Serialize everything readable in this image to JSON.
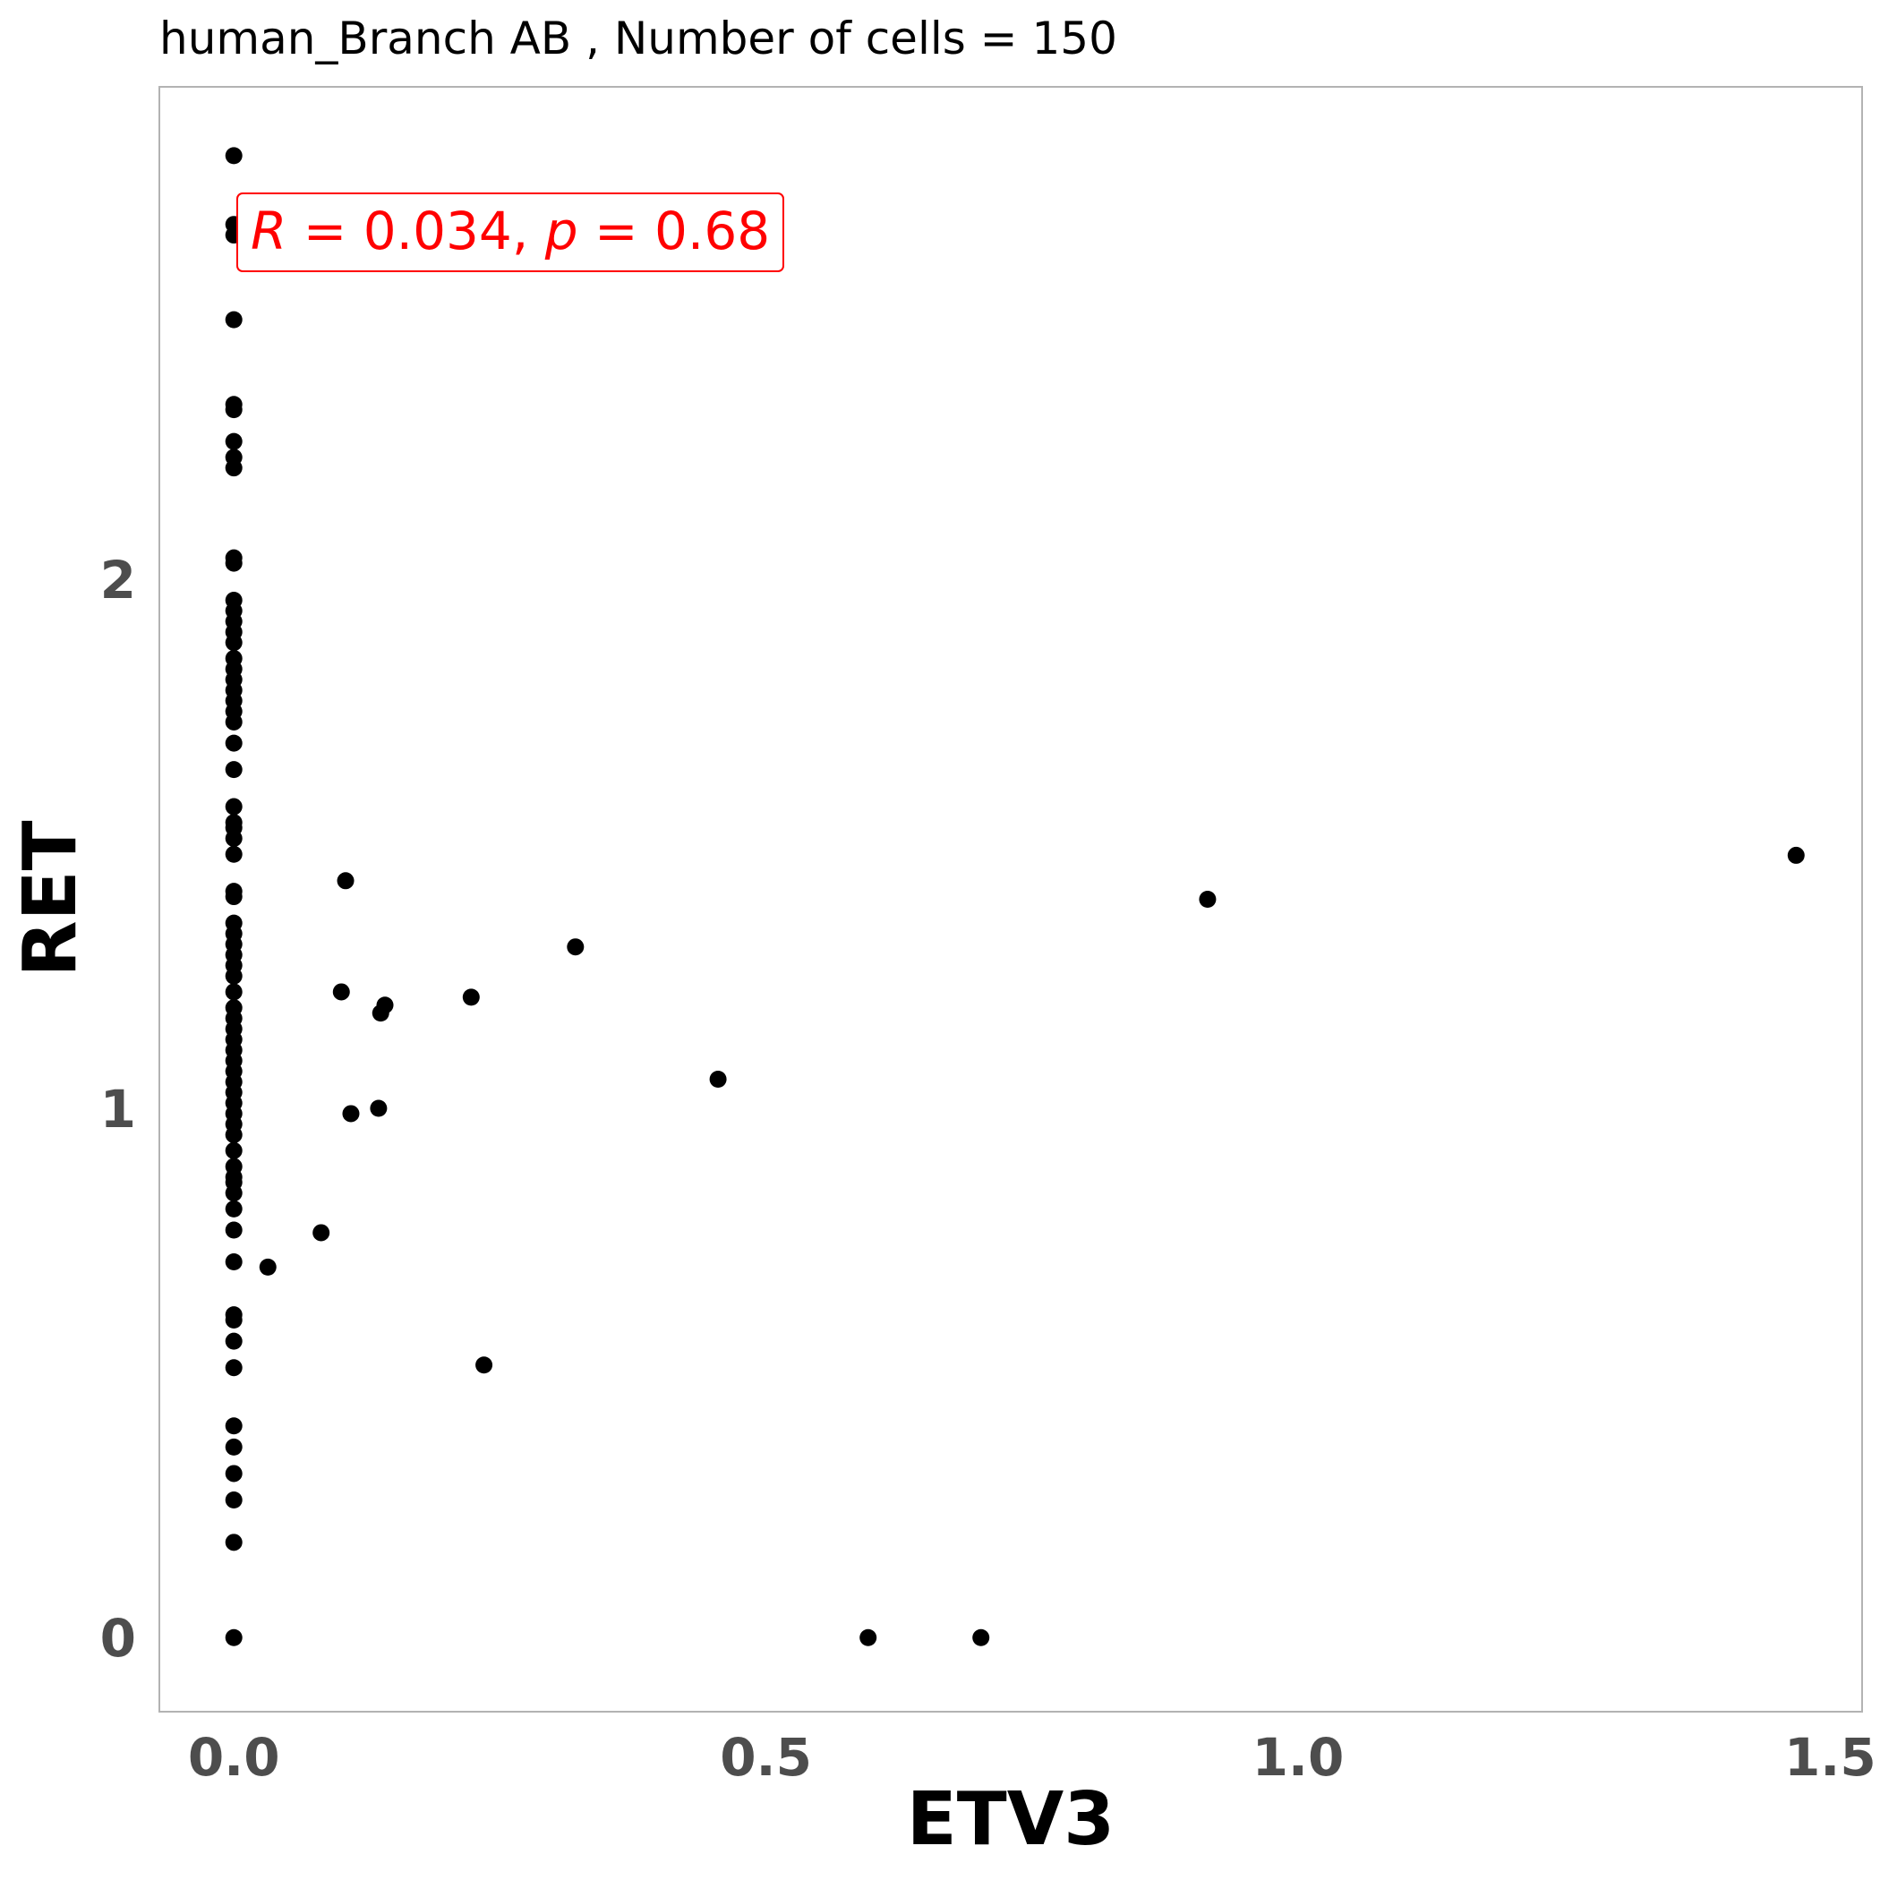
{
  "chart_data": {
    "type": "scatter",
    "title": "human_Branch AB , Number of cells =  150",
    "xlabel": "ETV3",
    "ylabel": "RET",
    "xlim": [
      -0.07,
      1.53
    ],
    "ylim": [
      -0.14,
      2.93
    ],
    "xticks": [
      0.0,
      0.5,
      1.0,
      1.5
    ],
    "xtick_labels": [
      "0.0",
      "0.5",
      "1.0",
      "1.5"
    ],
    "yticks": [
      0,
      1,
      2
    ],
    "ytick_labels": [
      "0",
      "1",
      "2"
    ],
    "grid": false,
    "legend": "none",
    "point_color": "#000000",
    "annotation": {
      "text_parts": [
        {
          "text": "R",
          "italic": true
        },
        {
          "text": " = 0.034, ",
          "italic": false
        },
        {
          "text": "p",
          "italic": true
        },
        {
          "text": " = 0.68",
          "italic": false
        }
      ],
      "color": "#ff0000",
      "position": "top-left"
    },
    "points": [
      [
        0,
        2.8
      ],
      [
        0,
        2.67
      ],
      [
        0,
        2.65
      ],
      [
        0,
        2.49
      ],
      [
        0,
        2.33
      ],
      [
        0,
        2.32
      ],
      [
        0,
        2.26
      ],
      [
        0,
        2.23
      ],
      [
        0,
        2.21
      ],
      [
        0,
        2.04
      ],
      [
        0,
        2.03
      ],
      [
        0,
        1.96
      ],
      [
        0,
        1.94
      ],
      [
        0,
        1.92
      ],
      [
        0,
        1.9
      ],
      [
        0,
        1.88
      ],
      [
        0,
        1.85
      ],
      [
        0,
        1.83
      ],
      [
        0,
        1.81
      ],
      [
        0,
        1.79
      ],
      [
        0,
        1.77
      ],
      [
        0,
        1.75
      ],
      [
        0,
        1.73
      ],
      [
        0,
        1.69
      ],
      [
        0,
        1.64
      ],
      [
        0,
        1.57
      ],
      [
        0,
        1.54
      ],
      [
        0,
        1.53
      ],
      [
        0,
        1.51
      ],
      [
        0,
        1.48
      ],
      [
        0,
        1.41
      ],
      [
        0,
        1.4
      ],
      [
        0,
        1.35
      ],
      [
        0,
        1.33
      ],
      [
        0,
        1.31
      ],
      [
        0,
        1.29
      ],
      [
        0,
        1.27
      ],
      [
        0,
        1.25
      ],
      [
        0,
        1.22
      ],
      [
        0,
        1.19
      ],
      [
        0,
        1.17
      ],
      [
        0,
        1.15
      ],
      [
        0,
        1.13
      ],
      [
        0,
        1.11
      ],
      [
        0,
        1.09
      ],
      [
        0,
        1.07
      ],
      [
        0,
        1.05
      ],
      [
        0,
        1.03
      ],
      [
        0,
        1.01
      ],
      [
        0,
        0.99
      ],
      [
        0,
        0.97
      ],
      [
        0,
        0.95
      ],
      [
        0,
        0.92
      ],
      [
        0,
        0.89
      ],
      [
        0,
        0.87
      ],
      [
        0,
        0.86
      ],
      [
        0,
        0.84
      ],
      [
        0,
        0.81
      ],
      [
        0,
        0.77
      ],
      [
        0,
        0.71
      ],
      [
        0,
        0.61
      ],
      [
        0,
        0.6
      ],
      [
        0,
        0.56
      ],
      [
        0,
        0.51
      ],
      [
        0,
        0.4
      ],
      [
        0,
        0.36
      ],
      [
        0,
        0.31
      ],
      [
        0,
        0.26
      ],
      [
        0,
        0.18
      ],
      [
        0,
        0.0
      ],
      [
        0.032,
        0.7
      ],
      [
        0.082,
        0.765
      ],
      [
        0.101,
        1.22
      ],
      [
        0.105,
        1.43
      ],
      [
        0.11,
        0.99
      ],
      [
        0.136,
        1.0
      ],
      [
        0.138,
        1.18
      ],
      [
        0.142,
        1.195
      ],
      [
        0.223,
        1.21
      ],
      [
        0.235,
        0.515
      ],
      [
        0.321,
        1.305
      ],
      [
        0.455,
        1.055
      ],
      [
        0.596,
        0.0
      ],
      [
        0.702,
        0.0
      ],
      [
        0.915,
        1.395
      ],
      [
        1.468,
        1.478
      ]
    ]
  }
}
